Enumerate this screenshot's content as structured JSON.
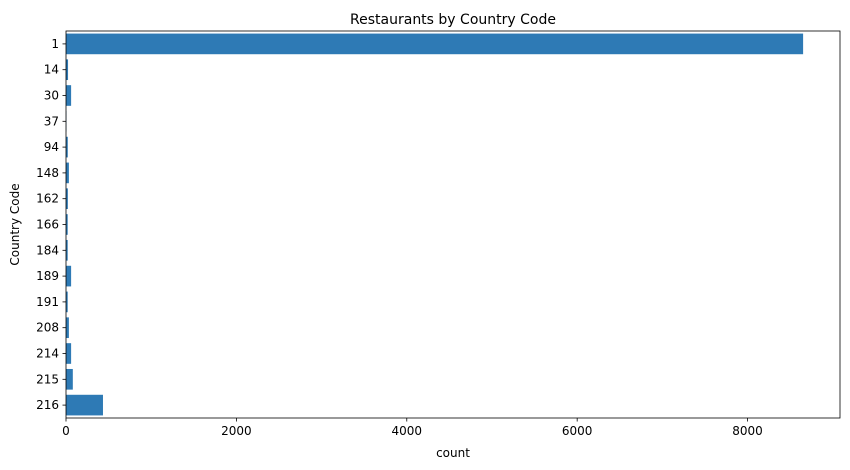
{
  "chart_data": {
    "type": "bar",
    "orientation": "horizontal",
    "title": "Restaurants by Country Code",
    "xlabel": "count",
    "ylabel": "Country Code",
    "categories": [
      "1",
      "14",
      "30",
      "37",
      "94",
      "148",
      "162",
      "166",
      "184",
      "189",
      "191",
      "208",
      "214",
      "215",
      "216"
    ],
    "values": [
      8652,
      24,
      60,
      4,
      21,
      34,
      22,
      20,
      20,
      60,
      20,
      34,
      60,
      80,
      434
    ],
    "xlim": [
      0,
      9085
    ],
    "xticks": [
      "0",
      "2000",
      "4000",
      "6000",
      "8000"
    ],
    "grid": false,
    "bar_color": "#2e7ab5"
  }
}
